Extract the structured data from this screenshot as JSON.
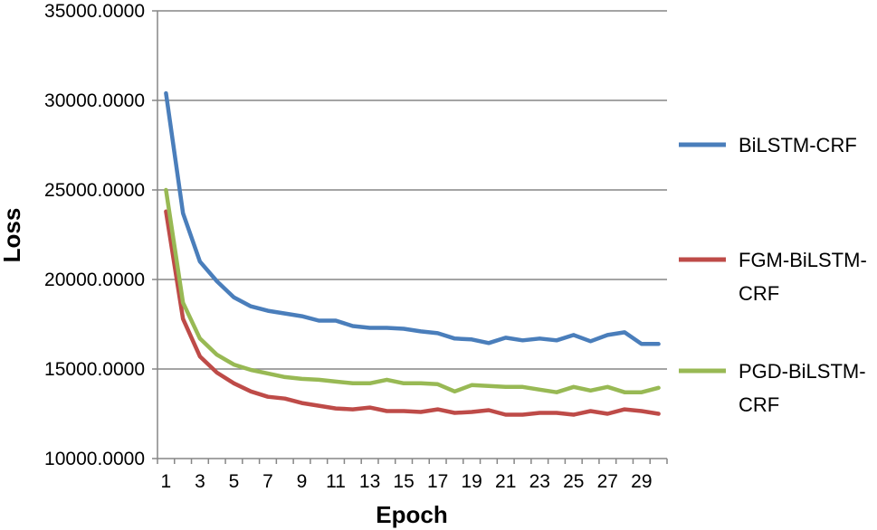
{
  "chart_data": {
    "type": "line",
    "title": "",
    "xlabel": "Epoch",
    "ylabel": "Loss",
    "ylim": [
      10000,
      35000
    ],
    "y_ticks": [
      "10000.0000",
      "15000.0000",
      "20000.0000",
      "25000.0000",
      "30000.0000",
      "35000.0000"
    ],
    "x_tick_labels": [
      "1",
      "3",
      "5",
      "7",
      "9",
      "11",
      "13",
      "15",
      "17",
      "19",
      "21",
      "23",
      "25",
      "27",
      "29"
    ],
    "grid": "horizontal",
    "legend_position": "right",
    "x": [
      1,
      2,
      3,
      4,
      5,
      6,
      7,
      8,
      9,
      10,
      11,
      12,
      13,
      14,
      15,
      16,
      17,
      18,
      19,
      20,
      21,
      22,
      23,
      24,
      25,
      26,
      27,
      28,
      29,
      30
    ],
    "series": [
      {
        "name": "BiLSTM-CRF",
        "legend_lines": [
          "BiLSTM-CRF"
        ],
        "color": "#4a7ebb",
        "values": [
          30400,
          23700,
          21000,
          19900,
          19000,
          18500,
          18250,
          18100,
          17950,
          17700,
          17700,
          17400,
          17300,
          17300,
          17250,
          17100,
          17000,
          16700,
          16650,
          16450,
          16750,
          16600,
          16700,
          16600,
          16900,
          16550,
          16900,
          17050,
          16400,
          16400
        ]
      },
      {
        "name": "FGM-BiLSTM-CRF",
        "legend_lines": [
          "FGM-BiLSTM-",
          "CRF"
        ],
        "color": "#be4b48",
        "values": [
          23800,
          17800,
          15700,
          14800,
          14200,
          13750,
          13450,
          13350,
          13100,
          12950,
          12800,
          12750,
          12850,
          12650,
          12650,
          12600,
          12750,
          12550,
          12600,
          12700,
          12450,
          12450,
          12550,
          12550,
          12450,
          12650,
          12500,
          12750,
          12650,
          12500
        ]
      },
      {
        "name": "PGD-BiLSTM-CRF",
        "legend_lines": [
          "PGD-BiLSTM-",
          "CRF"
        ],
        "color": "#98b954",
        "values": [
          25000,
          18700,
          16700,
          15800,
          15250,
          14950,
          14750,
          14550,
          14450,
          14400,
          14300,
          14200,
          14200,
          14400,
          14200,
          14200,
          14150,
          13750,
          14100,
          14050,
          14000,
          14000,
          13850,
          13700,
          14000,
          13800,
          14000,
          13700,
          13700,
          13950
        ]
      }
    ]
  }
}
